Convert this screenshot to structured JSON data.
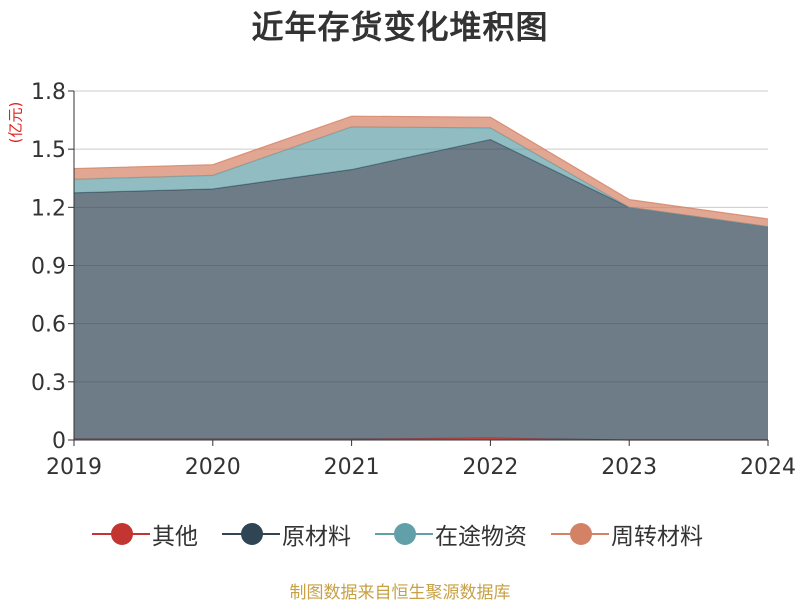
{
  "title": "近年存货变化堆积图",
  "unit_label": "(亿元)",
  "source": "制图数据来自恒生聚源数据库",
  "chart_data": {
    "type": "area",
    "stacked": true,
    "categories": [
      "2019",
      "2020",
      "2021",
      "2022",
      "2023",
      "2024"
    ],
    "ylim": [
      0,
      1.8
    ],
    "yticks": [
      "0",
      "0.3",
      "0.6",
      "0.9",
      "1.2",
      "1.5",
      "1.8"
    ],
    "ytick_values": [
      0,
      0.3,
      0.6,
      0.9,
      1.2,
      1.5,
      1.8
    ],
    "grid": true,
    "legend_position": "bottom",
    "series": [
      {
        "name": "其他",
        "color": "#c23531",
        "values": [
          0.005,
          0.005,
          0.005,
          0.01,
          0.0,
          0.0
        ]
      },
      {
        "name": "原材料",
        "color": "#2f4554",
        "values": [
          1.27,
          1.29,
          1.39,
          1.54,
          1.2,
          1.1
        ]
      },
      {
        "name": "在途物资",
        "color": "#61a0a8",
        "values": [
          0.07,
          0.07,
          0.22,
          0.06,
          0.0,
          0.0
        ]
      },
      {
        "name": "周转材料",
        "color": "#d48265",
        "values": [
          0.055,
          0.055,
          0.055,
          0.055,
          0.04,
          0.04
        ]
      }
    ]
  }
}
